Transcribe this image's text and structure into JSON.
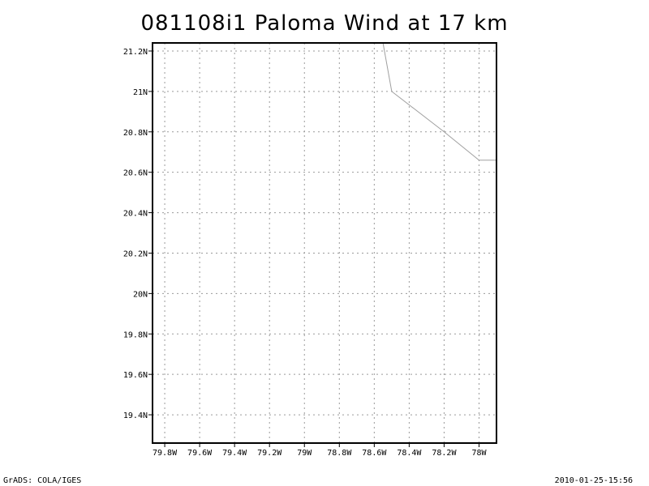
{
  "title": "081108i1 Paloma Wind at 17 km",
  "footer": {
    "left": "GrADS: COLA/IGES",
    "right": "2010-01-25-15:56"
  },
  "chart_data": {
    "type": "map",
    "grid": true,
    "lon_range": [
      -79.87,
      -77.9
    ],
    "lat_range": [
      19.26,
      21.24
    ],
    "x_ticks": [
      {
        "value": -79.8,
        "label": "79.8W"
      },
      {
        "value": -79.6,
        "label": "79.6W"
      },
      {
        "value": -79.4,
        "label": "79.4W"
      },
      {
        "value": -79.2,
        "label": "79.2W"
      },
      {
        "value": -79.0,
        "label": "79W"
      },
      {
        "value": -78.8,
        "label": "78.8W"
      },
      {
        "value": -78.6,
        "label": "78.6W"
      },
      {
        "value": -78.4,
        "label": "78.4W"
      },
      {
        "value": -78.2,
        "label": "78.2W"
      },
      {
        "value": -78.0,
        "label": "78W"
      }
    ],
    "y_ticks": [
      {
        "value": 19.4,
        "label": "19.4N"
      },
      {
        "value": 19.6,
        "label": "19.6N"
      },
      {
        "value": 19.8,
        "label": "19.8N"
      },
      {
        "value": 20.0,
        "label": "20N"
      },
      {
        "value": 20.2,
        "label": "20.2N"
      },
      {
        "value": 20.4,
        "label": "20.4N"
      },
      {
        "value": 20.6,
        "label": "20.6N"
      },
      {
        "value": 20.8,
        "label": "20.8N"
      },
      {
        "value": 21.0,
        "label": "21N"
      },
      {
        "value": 21.2,
        "label": "21.2N"
      }
    ],
    "coastline": [
      [
        -78.55,
        21.24
      ],
      [
        -78.5,
        21.0
      ],
      [
        -78.2,
        20.8
      ],
      [
        -78.0,
        20.66
      ],
      [
        -77.9,
        20.66
      ]
    ],
    "colors": {
      "grid": "#9a9a9a",
      "coastline": "#a0a0a0",
      "frame": "#000000"
    }
  }
}
